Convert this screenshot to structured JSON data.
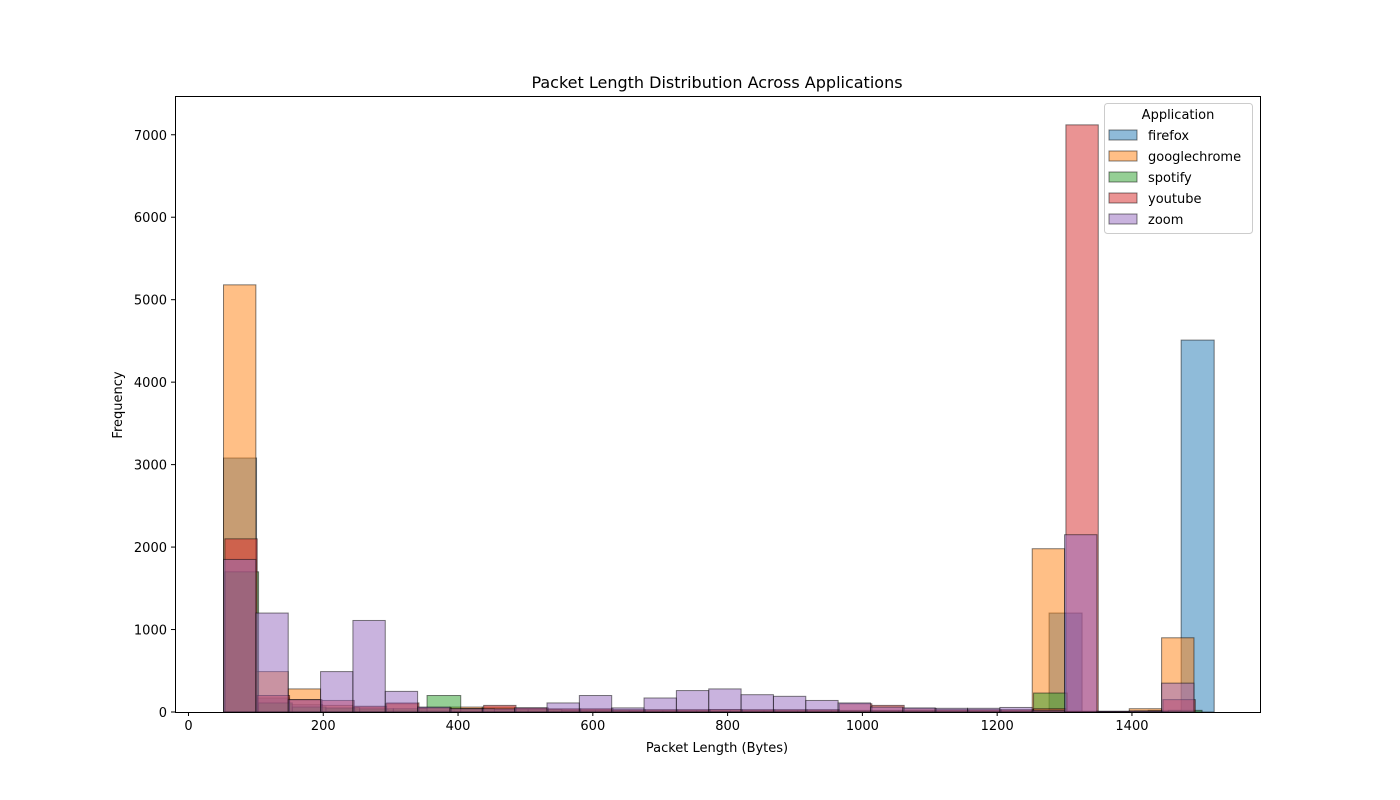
{
  "chart_data": {
    "type": "bar",
    "title": "Packet Length Distribution Across Applications",
    "xlabel": "Packet Length (Bytes)",
    "ylabel": "Frequency",
    "xlim": [
      -20,
      1590
    ],
    "ylim": [
      0,
      7470
    ],
    "xticks": [
      0,
      200,
      400,
      600,
      800,
      1000,
      1200,
      1400
    ],
    "yticks": [
      0,
      1000,
      2000,
      3000,
      4000,
      5000,
      6000,
      7000
    ],
    "grid": false,
    "legend": {
      "title": "Application",
      "placement": "top-right"
    },
    "series": [
      {
        "name": "firefox",
        "color": "#1f77b4",
        "bins": [
          [
            52,
            101,
            3080
          ],
          [
            101,
            150,
            170
          ],
          [
            150,
            199,
            90
          ],
          [
            199,
            248,
            40
          ],
          [
            248,
            297,
            30
          ],
          [
            297,
            346,
            20
          ],
          [
            346,
            395,
            20
          ],
          [
            395,
            444,
            15
          ],
          [
            444,
            493,
            15
          ],
          [
            493,
            542,
            15
          ],
          [
            542,
            591,
            15
          ],
          [
            591,
            640,
            15
          ],
          [
            640,
            689,
            10
          ],
          [
            689,
            738,
            10
          ],
          [
            738,
            787,
            10
          ],
          [
            787,
            836,
            10
          ],
          [
            836,
            885,
            10
          ],
          [
            885,
            934,
            10
          ],
          [
            934,
            983,
            10
          ],
          [
            983,
            1032,
            10
          ],
          [
            1032,
            1081,
            10
          ],
          [
            1081,
            1130,
            10
          ],
          [
            1130,
            1179,
            10
          ],
          [
            1179,
            1228,
            10
          ],
          [
            1228,
            1277,
            10
          ],
          [
            1277,
            1326,
            1200
          ],
          [
            1326,
            1375,
            5
          ],
          [
            1375,
            1424,
            5
          ],
          [
            1424,
            1473,
            20
          ],
          [
            1473,
            1522,
            4510
          ]
        ]
      },
      {
        "name": "googlechrome",
        "color": "#ff7f0e",
        "bins": [
          [
            52,
            100,
            5180
          ],
          [
            100,
            148,
            490
          ],
          [
            148,
            196,
            280
          ],
          [
            196,
            244,
            80
          ],
          [
            244,
            292,
            60
          ],
          [
            292,
            340,
            100
          ],
          [
            340,
            388,
            50
          ],
          [
            388,
            436,
            60
          ],
          [
            436,
            484,
            60
          ],
          [
            484,
            532,
            40
          ],
          [
            532,
            580,
            30
          ],
          [
            580,
            628,
            30
          ],
          [
            628,
            676,
            20
          ],
          [
            676,
            724,
            20
          ],
          [
            724,
            772,
            20
          ],
          [
            772,
            820,
            30
          ],
          [
            820,
            868,
            20
          ],
          [
            868,
            916,
            20
          ],
          [
            916,
            964,
            20
          ],
          [
            964,
            1012,
            20
          ],
          [
            1012,
            1060,
            20
          ],
          [
            1060,
            1108,
            20
          ],
          [
            1108,
            1156,
            20
          ],
          [
            1156,
            1204,
            20
          ],
          [
            1204,
            1252,
            20
          ],
          [
            1252,
            1300,
            1980
          ],
          [
            1300,
            1348,
            10
          ],
          [
            1348,
            1396,
            5
          ],
          [
            1396,
            1444,
            40
          ],
          [
            1444,
            1492,
            900
          ]
        ]
      },
      {
        "name": "spotify",
        "color": "#2ca02c",
        "bins": [
          [
            54,
            104,
            1700
          ],
          [
            104,
            154,
            110
          ],
          [
            154,
            204,
            60
          ],
          [
            204,
            254,
            50
          ],
          [
            254,
            304,
            40
          ],
          [
            304,
            354,
            40
          ],
          [
            354,
            404,
            200
          ],
          [
            404,
            454,
            40
          ],
          [
            454,
            504,
            30
          ],
          [
            504,
            554,
            30
          ],
          [
            554,
            604,
            20
          ],
          [
            604,
            654,
            20
          ],
          [
            654,
            704,
            15
          ],
          [
            704,
            754,
            15
          ],
          [
            754,
            804,
            15
          ],
          [
            804,
            854,
            15
          ],
          [
            854,
            904,
            15
          ],
          [
            904,
            954,
            15
          ],
          [
            954,
            1004,
            15
          ],
          [
            1004,
            1054,
            15
          ],
          [
            1054,
            1104,
            15
          ],
          [
            1104,
            1154,
            15
          ],
          [
            1154,
            1204,
            15
          ],
          [
            1204,
            1254,
            15
          ],
          [
            1254,
            1304,
            230
          ],
          [
            1304,
            1354,
            5
          ],
          [
            1354,
            1404,
            5
          ],
          [
            1404,
            1454,
            10
          ],
          [
            1454,
            1504,
            20
          ],
          [
            1504,
            1554,
            0
          ]
        ]
      },
      {
        "name": "youtube",
        "color": "#d62728",
        "bins": [
          [
            54,
            102,
            2100
          ],
          [
            102,
            150,
            200
          ],
          [
            150,
            198,
            150
          ],
          [
            198,
            246,
            140
          ],
          [
            246,
            294,
            70
          ],
          [
            294,
            342,
            110
          ],
          [
            342,
            390,
            50
          ],
          [
            390,
            438,
            40
          ],
          [
            438,
            486,
            80
          ],
          [
            486,
            534,
            50
          ],
          [
            534,
            582,
            40
          ],
          [
            582,
            630,
            40
          ],
          [
            630,
            678,
            30
          ],
          [
            678,
            726,
            30
          ],
          [
            726,
            774,
            30
          ],
          [
            774,
            822,
            30
          ],
          [
            822,
            870,
            30
          ],
          [
            870,
            918,
            30
          ],
          [
            918,
            966,
            30
          ],
          [
            966,
            1014,
            100
          ],
          [
            1014,
            1062,
            80
          ],
          [
            1062,
            1110,
            40
          ],
          [
            1110,
            1158,
            30
          ],
          [
            1158,
            1206,
            30
          ],
          [
            1206,
            1254,
            30
          ],
          [
            1254,
            1302,
            40
          ],
          [
            1302,
            1350,
            7120
          ],
          [
            1350,
            1398,
            5
          ],
          [
            1398,
            1446,
            5
          ],
          [
            1446,
            1494,
            150
          ]
        ]
      },
      {
        "name": "zoom",
        "color": "#9467bd",
        "bins": [
          [
            52,
            100,
            1850
          ],
          [
            100,
            148,
            1200
          ],
          [
            148,
            196,
            150
          ],
          [
            196,
            244,
            490
          ],
          [
            244,
            292,
            1110
          ],
          [
            292,
            340,
            250
          ],
          [
            340,
            388,
            60
          ],
          [
            388,
            436,
            40
          ],
          [
            436,
            484,
            40
          ],
          [
            484,
            532,
            50
          ],
          [
            532,
            580,
            110
          ],
          [
            580,
            628,
            200
          ],
          [
            628,
            676,
            50
          ],
          [
            676,
            724,
            170
          ],
          [
            724,
            772,
            260
          ],
          [
            772,
            820,
            280
          ],
          [
            820,
            868,
            210
          ],
          [
            868,
            916,
            190
          ],
          [
            916,
            964,
            140
          ],
          [
            964,
            1012,
            110
          ],
          [
            1012,
            1060,
            60
          ],
          [
            1060,
            1108,
            50
          ],
          [
            1108,
            1156,
            45
          ],
          [
            1156,
            1204,
            45
          ],
          [
            1204,
            1252,
            55
          ],
          [
            1252,
            1300,
            20
          ],
          [
            1300,
            1348,
            2150
          ],
          [
            1348,
            1396,
            10
          ],
          [
            1396,
            1444,
            15
          ],
          [
            1444,
            1492,
            350
          ]
        ]
      }
    ]
  }
}
